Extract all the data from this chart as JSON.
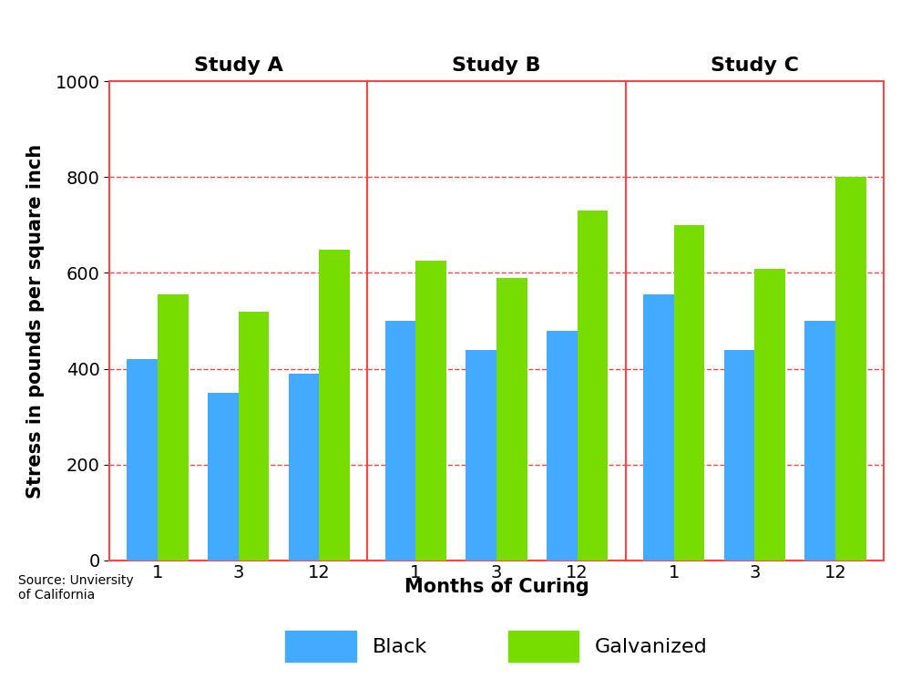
{
  "studies": [
    "Study A",
    "Study B",
    "Study C"
  ],
  "months": [
    "1",
    "3",
    "12"
  ],
  "black_values": [
    [
      420,
      350,
      390
    ],
    [
      500,
      440,
      480
    ],
    [
      555,
      440,
      500
    ]
  ],
  "galvanized_values": [
    [
      555,
      520,
      648
    ],
    [
      625,
      590,
      730
    ],
    [
      700,
      608,
      800
    ]
  ],
  "blue_color": "#42AAFF",
  "green_color": "#77DD00",
  "ylabel": "Stress in pounds per square inch",
  "xlabel": "Months of Curing",
  "ylim": [
    0,
    1000
  ],
  "yticks": [
    0,
    200,
    400,
    600,
    800,
    1000
  ],
  "grid_color": "#FF4444",
  "border_color": "#FF4444",
  "source_text": "Source: Unviersity\nof California",
  "legend_labels": [
    "Black",
    "Galvanized"
  ],
  "study_title_fontsize": 16,
  "axis_label_fontsize": 15,
  "tick_fontsize": 14,
  "legend_fontsize": 16,
  "bar_width": 0.38,
  "figure_bg": "#FFFFFF"
}
